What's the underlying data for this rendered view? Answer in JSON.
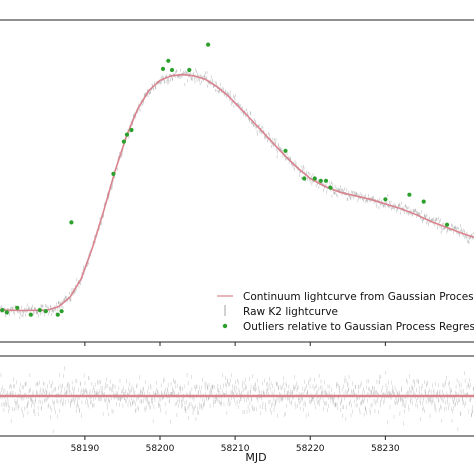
{
  "chart_data": {
    "type": "scatter",
    "xlabel": "MJD",
    "xlim": [
      58178.7,
      58241.8
    ],
    "xticks": [
      58190,
      58200,
      58210,
      58220,
      58230
    ],
    "xtick_labels": [
      "58190",
      "58200",
      "58210",
      "58220",
      "58230"
    ],
    "main_ylim": [
      0,
      1.2
    ],
    "resid_ylim": [
      -1,
      1
    ],
    "legend": {
      "position": "lower-right"
    },
    "series": [
      {
        "name": "Continuum lightcurve from Gaussian Process Regression",
        "kind": "line",
        "color": "#d9838f",
        "x": [
          58178.7,
          58182,
          58185,
          58186.5,
          58188,
          58189.5,
          58191,
          58192.5,
          58194,
          58195.5,
          58197,
          58198.5,
          58200,
          58201.5,
          58203,
          58204.5,
          58206,
          58207.5,
          58209,
          58210.5,
          58212,
          58214,
          58216,
          58218,
          58220,
          58222,
          58224,
          58226,
          58228,
          58230,
          58232,
          58234,
          58236,
          58238,
          58240,
          58241.8
        ],
        "y": [
          0.03,
          0.028,
          0.03,
          0.045,
          0.085,
          0.165,
          0.3,
          0.46,
          0.63,
          0.78,
          0.9,
          0.98,
          1.025,
          1.045,
          1.05,
          1.045,
          1.03,
          1.0,
          0.96,
          0.91,
          0.86,
          0.79,
          0.72,
          0.655,
          0.6,
          0.565,
          0.54,
          0.525,
          0.51,
          0.49,
          0.47,
          0.445,
          0.415,
          0.39,
          0.365,
          0.345
        ]
      },
      {
        "name": "Raw K2 lightcurve",
        "kind": "points",
        "color": "#8c8c8c"
      },
      {
        "name": "Outliers relative to Gaussian Process Regression",
        "kind": "points",
        "color": "#2ca02c",
        "x": [
          58179,
          58179.6,
          58181,
          58182.8,
          58184,
          58184.8,
          58186.4,
          58186.9,
          58188.2,
          58193.8,
          58195.2,
          58195.6,
          58196.2,
          58200.4,
          58201.1,
          58201.6,
          58203.9,
          58205.6,
          58206.4,
          58216.7,
          58219.2,
          58220.6,
          58221.4,
          58222.1,
          58222.7,
          58230,
          58233.2,
          58235.1,
          58238.2
        ],
        "y": [
          0.03,
          0.02,
          0.04,
          0.01,
          0.03,
          0.025,
          0.01,
          0.025,
          0.41,
          0.62,
          0.76,
          0.79,
          0.81,
          1.075,
          1.11,
          1.07,
          1.07,
          1.48,
          1.18,
          0.72,
          0.6,
          0.6,
          0.59,
          0.59,
          0.56,
          0.51,
          0.53,
          0.5,
          0.4
        ]
      }
    ]
  }
}
